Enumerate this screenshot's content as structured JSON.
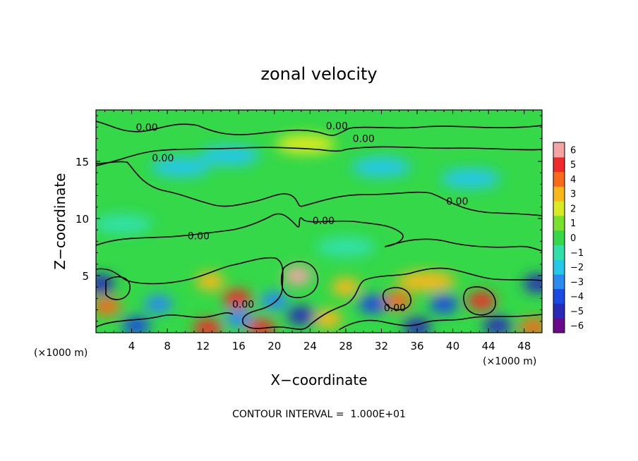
{
  "chart_data": {
    "type": "heatmap",
    "title": "zonal velocity",
    "xlabel": "X−coordinate",
    "ylabel": "Z−coordinate",
    "x_unit_left": "(×1000 m)",
    "x_unit_right": "(×1000 m)",
    "xlim": [
      0,
      50
    ],
    "ylim": [
      0,
      19.5
    ],
    "x_ticks": [
      4,
      8,
      12,
      16,
      20,
      24,
      28,
      32,
      36,
      40,
      44,
      48
    ],
    "x_tick_labels": [
      "4",
      "8",
      "12",
      "16",
      "20",
      "24",
      "28",
      "32",
      "36",
      "40",
      "44",
      "48"
    ],
    "y_ticks": [
      5,
      10,
      15
    ],
    "y_tick_labels": [
      "5",
      "10",
      "15"
    ],
    "colorbar": {
      "min": -6,
      "max": 6,
      "tick_values": [
        6,
        5,
        4,
        3,
        2,
        1,
        0,
        -1,
        -2,
        -3,
        -4,
        -5,
        -6
      ],
      "tick_labels": [
        "6",
        "5",
        "4",
        "3",
        "2",
        "1",
        "0",
        "−1",
        "−2",
        "−3",
        "−4",
        "−5",
        "−6"
      ],
      "colors": [
        "#6a0a8a",
        "#2a2ab8",
        "#1a4ae0",
        "#2a8af0",
        "#26c8e8",
        "#30e0a8",
        "#34d848",
        "#7ae02e",
        "#d8ea24",
        "#f8b81a",
        "#f86a1a",
        "#f02a2a",
        "#f4a4a4"
      ]
    },
    "contour_labels": [
      {
        "text": "0.00",
        "x": 5.7,
        "z": 18.0
      },
      {
        "text": "0.00",
        "x": 27.0,
        "z": 18.1
      },
      {
        "text": "0.00",
        "x": 30.0,
        "z": 17.0
      },
      {
        "text": "0.00",
        "x": 7.5,
        "z": 15.3
      },
      {
        "text": "0.00",
        "x": 40.5,
        "z": 11.5
      },
      {
        "text": "0.00",
        "x": 11.5,
        "z": 8.5
      },
      {
        "text": "0.00",
        "x": 25.5,
        "z": 9.8
      },
      {
        "text": "0.00",
        "x": 16.5,
        "z": 2.5
      },
      {
        "text": "0.00",
        "x": 33.5,
        "z": 2.2
      }
    ],
    "field_features": [
      {
        "kind": "positive",
        "x": 22.6,
        "z": 5.0,
        "value": 5.5
      },
      {
        "kind": "positive",
        "x": 15.8,
        "z": 3.0,
        "value": 4.5
      },
      {
        "kind": "positive",
        "x": 33.8,
        "z": 2.8,
        "value": 4.0
      },
      {
        "kind": "positive",
        "x": 43.2,
        "z": 2.8,
        "value": 4.5
      },
      {
        "kind": "positive",
        "x": 1.2,
        "z": 2.3,
        "value": 3.5
      },
      {
        "kind": "positive",
        "x": 12.5,
        "z": 0.4,
        "value": 4.5
      },
      {
        "kind": "positive",
        "x": 18.5,
        "z": 0.4,
        "value": 5.0
      },
      {
        "kind": "positive",
        "x": 49.0,
        "z": 0.5,
        "value": 4.0
      },
      {
        "kind": "positive",
        "x": 26.0,
        "z": 1.2,
        "value": 3.0
      },
      {
        "kind": "positive",
        "x": 12.8,
        "z": 4.5,
        "value": 3.0
      },
      {
        "kind": "positive",
        "x": 28.0,
        "z": 4.0,
        "value": 3.0
      },
      {
        "kind": "positive",
        "x": 37.0,
        "z": 4.5,
        "value": 2.5
      },
      {
        "kind": "positive",
        "x": 23.5,
        "z": 16.5,
        "value": 1.8
      },
      {
        "kind": "negative",
        "x": 0.5,
        "z": 4.3,
        "value": -5.5
      },
      {
        "kind": "negative",
        "x": 49.5,
        "z": 4.3,
        "value": -5.0
      },
      {
        "kind": "negative",
        "x": 23.0,
        "z": 1.5,
        "value": -5.5
      },
      {
        "kind": "negative",
        "x": 31.0,
        "z": 2.5,
        "value": -4.5
      },
      {
        "kind": "negative",
        "x": 4.5,
        "z": 0.6,
        "value": -4.5
      },
      {
        "kind": "negative",
        "x": 36.0,
        "z": 0.5,
        "value": -5.0
      },
      {
        "kind": "negative",
        "x": 45.0,
        "z": 0.6,
        "value": -5.0
      },
      {
        "kind": "negative",
        "x": 16.0,
        "z": 1.3,
        "value": -3.5
      },
      {
        "kind": "negative",
        "x": 20.0,
        "z": 2.8,
        "value": -3.5
      },
      {
        "kind": "negative",
        "x": 39.0,
        "z": 2.5,
        "value": -4.0
      },
      {
        "kind": "negative",
        "x": 7.0,
        "z": 2.5,
        "value": -3.0
      },
      {
        "kind": "negative",
        "x": 9.5,
        "z": 14.5,
        "value": -2.5
      },
      {
        "kind": "negative",
        "x": 15.0,
        "z": 15.5,
        "value": -2.0
      },
      {
        "kind": "negative",
        "x": 32.0,
        "z": 14.5,
        "value": -2.0
      },
      {
        "kind": "negative",
        "x": 42.0,
        "z": 13.5,
        "value": -1.8
      },
      {
        "kind": "negative",
        "x": 3.0,
        "z": 9.5,
        "value": -1.5
      },
      {
        "kind": "negative",
        "x": 28.0,
        "z": 7.5,
        "value": -1.5
      }
    ],
    "annotation": "CONTOUR INTERVAL =  1.000E+01",
    "grid": false
  }
}
